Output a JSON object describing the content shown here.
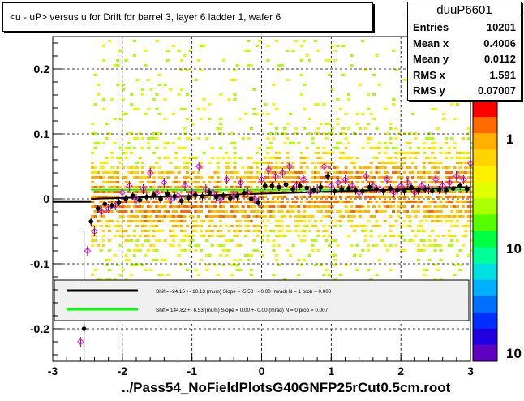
{
  "title": "<u - uP>       versus   u for Drift for barrel 3, layer 6 ladder 1, wafer 6",
  "footer": "../Pass54_NoFieldPlotsG40GNFP25rCut0.5cm.root",
  "stats": {
    "name": "duuP6601",
    "rows": [
      {
        "label": "Entries",
        "value": "10201"
      },
      {
        "label": "Mean x",
        "value": "0.4006"
      },
      {
        "label": "Mean y",
        "value": "0.0112"
      },
      {
        "label": "RMS x",
        "value": "1.591"
      },
      {
        "label": "RMS y",
        "value": "0.07007"
      }
    ]
  },
  "legend": {
    "black": "Shift=   -24.15 +- 10.13 (mum) Slope =    -5.58 +- 0.00 (mrad)   N = 1 prob = 0.000",
    "green": "Shift=   144.82 +- 6.53 (mum) Slope =    0.00 +- 0.00 (mrad)   N = 0 prob = 0.007"
  },
  "chart_data": {
    "type": "heatmap",
    "xlim": [
      -3,
      3
    ],
    "ylim": [
      -0.25,
      0.25
    ],
    "xticks": [
      "-3",
      "-2",
      "-1",
      "0",
      "1",
      "2",
      "3"
    ],
    "yticks": [
      "-0.2",
      "-0.1",
      "0",
      "0.1",
      "0.2"
    ],
    "zticks": [
      "1",
      "10",
      "10"
    ],
    "grid": true,
    "legend_placement": "bottom",
    "colors": {
      "palette": [
        "#ff0000",
        "#ff6a00",
        "#ffb000",
        "#ffd400",
        "#fff000",
        "#e0ff00",
        "#aaff00",
        "#55ff00",
        "#00ff40",
        "#00ff99",
        "#00e0e0",
        "#00b0ff",
        "#0070ff",
        "#0030ff",
        "#2000e0",
        "#6000c0"
      ],
      "profile_black": "#000000",
      "profile_open": "#ff00ff",
      "fit_black": "#000000",
      "fit_green": "#00ff00"
    },
    "profile_black": {
      "x": [
        -2.55,
        -2.45,
        -2.35,
        -2.25,
        -2.15,
        -2.05,
        -1.95,
        -1.85,
        -1.75,
        -1.65,
        -1.55,
        -1.45,
        -1.35,
        -1.25,
        -1.15,
        -1.05,
        -0.95,
        -0.85,
        -0.75,
        -0.65,
        -0.55,
        -0.45,
        -0.35,
        -0.25,
        -0.15,
        -0.05,
        0.05,
        0.15,
        0.25,
        0.35,
        0.45,
        0.55,
        0.65,
        0.75,
        0.85,
        0.95,
        1.05,
        1.15,
        1.25,
        1.35,
        1.45,
        1.55,
        1.65,
        1.75,
        1.85,
        1.95,
        2.05,
        2.15,
        2.25,
        2.35,
        2.45,
        2.55,
        2.65,
        2.75,
        2.85,
        2.95
      ],
      "y": [
        -0.2,
        -0.035,
        -0.015,
        -0.008,
        -0.01,
        -0.005,
        0.0,
        0.005,
        -0.002,
        0.003,
        0.006,
        0.0,
        0.008,
        0.004,
        -0.003,
        0.002,
        0.006,
        0.004,
        0.01,
        0.003,
        0.005,
        0.001,
        0.004,
        0.009,
        0.0,
        -0.005,
        0.02,
        0.02,
        0.018,
        0.022,
        0.015,
        0.02,
        0.017,
        0.014,
        0.018,
        0.035,
        0.012,
        0.015,
        0.016,
        0.013,
        0.012,
        0.018,
        0.015,
        0.012,
        0.016,
        0.013,
        0.012,
        0.018,
        0.013,
        0.015,
        0.012,
        0.014,
        0.013,
        0.016,
        0.02,
        0.015
      ]
    },
    "profile_open": {
      "x": [
        -2.6,
        -2.5,
        -2.4,
        -2.3,
        -2.2,
        -2.1,
        -2.0,
        -1.9,
        -1.8,
        -1.7,
        -1.6,
        -1.5,
        -1.4,
        -1.3,
        -1.2,
        -1.1,
        -1.0,
        -0.9,
        -0.8,
        -0.7,
        -0.6,
        -0.5,
        -0.4,
        -0.3,
        -0.2,
        -0.1,
        0.0,
        0.1,
        0.2,
        0.3,
        0.4,
        0.5,
        0.6,
        0.7,
        0.8,
        0.9,
        1.0,
        1.1,
        1.2,
        1.3,
        1.4,
        1.5,
        1.6,
        1.7,
        1.8,
        1.9,
        2.0,
        2.1,
        2.2,
        2.3,
        2.4,
        2.5,
        2.6,
        2.7,
        2.8,
        2.9,
        3.0
      ],
      "y": [
        -0.22,
        -0.08,
        -0.05,
        -0.02,
        -0.015,
        -0.01,
        0.01,
        0.02,
        0.0,
        0.015,
        0.04,
        0.01,
        0.025,
        0.0,
        0.005,
        0.02,
        0.01,
        0.05,
        0.015,
        0.01,
        0.0,
        0.03,
        0.005,
        0.025,
        0.01,
        0.0,
        0.03,
        0.045,
        0.035,
        0.04,
        0.05,
        0.02,
        0.03,
        0.01,
        0.015,
        0.05,
        0.02,
        0.025,
        0.03,
        0.02,
        0.01,
        0.035,
        0.02,
        0.015,
        0.03,
        0.01,
        0.02,
        0.025,
        0.01,
        0.02,
        0.015,
        0.03,
        0.02,
        0.025,
        0.035,
        0.03,
        0.055
      ]
    },
    "fit_black": {
      "x": [
        -3,
        -2.45
      ],
      "y": [
        -0.004,
        -0.004
      ]
    },
    "fit_green": {
      "x": [
        -2.45,
        3
      ],
      "y": [
        0.014,
        0.014
      ]
    },
    "fit_black_main": {
      "x": [
        -2.45,
        3
      ],
      "y": [
        -0.0,
        0.018
      ]
    }
  }
}
